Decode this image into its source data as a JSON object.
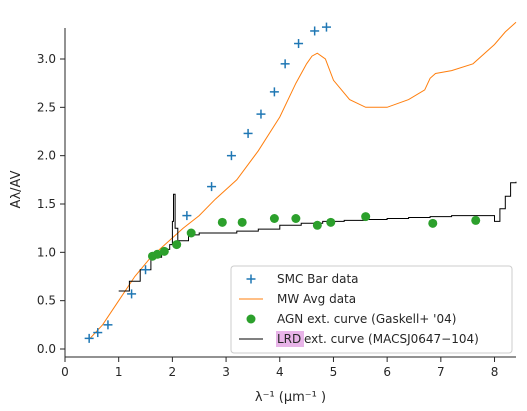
{
  "chart_data": {
    "type": "line",
    "xlabel": "λ⁻¹ (μm⁻¹ )",
    "ylabel": "Aλ/AV",
    "xlim": [
      0,
      8.4
    ],
    "ylim": [
      0,
      3.3
    ],
    "xticks": [
      "0",
      "1",
      "2",
      "3",
      "4",
      "5",
      "6",
      "7",
      "8"
    ],
    "yticks": [
      "0.0",
      "0.5",
      "1.0",
      "1.5",
      "2.0",
      "2.5",
      "3.0"
    ],
    "legend_position": "lower-right",
    "colors": {
      "smc": "#1f77b4",
      "mw": "#ff7f0e",
      "agn": "#2ca02c",
      "lrd": "#000000",
      "highlight": "#e8b4e8"
    },
    "series": [
      {
        "name": "SMC Bar data",
        "kind": "scatter-plus",
        "x": [
          0.45,
          0.61,
          0.8,
          1.24,
          1.5,
          2.27,
          2.73,
          3.1,
          3.41,
          3.65,
          3.9,
          4.1,
          4.35,
          4.65,
          4.87
        ],
        "y": [
          0.11,
          0.17,
          0.25,
          0.57,
          0.82,
          1.38,
          1.68,
          2.0,
          2.23,
          2.43,
          2.66,
          2.95,
          3.16,
          3.29,
          3.33
        ]
      },
      {
        "name": "MW Avg data",
        "kind": "line",
        "x": [
          0.45,
          0.7,
          1.0,
          1.3,
          1.6,
          1.9,
          2.2,
          2.5,
          2.8,
          3.2,
          3.6,
          4.0,
          4.3,
          4.5,
          4.6,
          4.7,
          4.85,
          5.0,
          5.3,
          5.6,
          6.0,
          6.4,
          6.7,
          6.8,
          6.9,
          7.2,
          7.6,
          8.0,
          8.2,
          8.4
        ],
        "y": [
          0.1,
          0.25,
          0.5,
          0.75,
          0.95,
          1.1,
          1.25,
          1.38,
          1.55,
          1.75,
          2.05,
          2.4,
          2.75,
          2.95,
          3.03,
          3.06,
          3.0,
          2.78,
          2.58,
          2.5,
          2.5,
          2.58,
          2.68,
          2.8,
          2.85,
          2.88,
          2.95,
          3.15,
          3.28,
          3.38
        ]
      },
      {
        "name": "AGN ext. curve (Gaskell+ '04)",
        "kind": "scatter-dot",
        "x": [
          1.63,
          1.72,
          1.85,
          2.08,
          2.35,
          2.93,
          3.3,
          3.9,
          4.3,
          4.7,
          4.95,
          5.6,
          6.85,
          7.65
        ],
        "y": [
          0.96,
          0.98,
          1.01,
          1.08,
          1.2,
          1.31,
          1.31,
          1.35,
          1.35,
          1.28,
          1.31,
          1.37,
          1.3,
          1.33
        ]
      },
      {
        "name": "LRD ext. curve (MACSJ0647−104)",
        "kind": "step",
        "x": [
          1.0,
          1.2,
          1.4,
          1.6,
          1.8,
          1.95,
          2.0,
          2.02,
          2.05,
          2.1,
          2.3,
          2.5,
          2.8,
          3.2,
          3.6,
          4.0,
          4.4,
          4.8,
          5.2,
          5.6,
          6.0,
          6.4,
          6.8,
          7.2,
          7.5,
          7.8,
          8.0,
          8.1,
          8.2,
          8.3,
          8.4
        ],
        "y": [
          0.6,
          0.7,
          0.82,
          0.95,
          1.03,
          1.08,
          1.32,
          1.6,
          1.25,
          1.12,
          1.18,
          1.2,
          1.2,
          1.22,
          1.24,
          1.28,
          1.3,
          1.32,
          1.33,
          1.34,
          1.35,
          1.36,
          1.37,
          1.38,
          1.38,
          1.38,
          1.32,
          1.45,
          1.58,
          1.72,
          1.73
        ]
      }
    ],
    "legend_entries": [
      {
        "label": "SMC Bar data",
        "marker": "plus",
        "series": 0
      },
      {
        "label": "MW Avg data",
        "marker": "line",
        "series": 1
      },
      {
        "label": "AGN ext. curve (Gaskell+ '04)",
        "marker": "dot",
        "series": 2
      },
      {
        "prefix": "LRD",
        "label": " ext. curve (MACSJ0647−104)",
        "marker": "line",
        "series": 3
      }
    ]
  }
}
